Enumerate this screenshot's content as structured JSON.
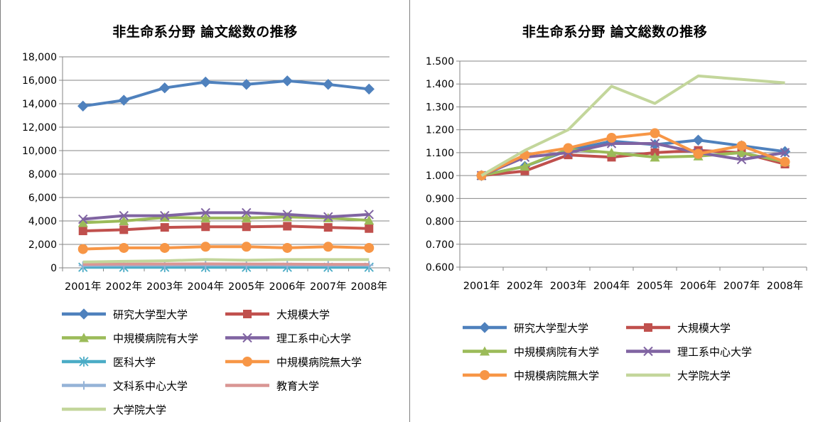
{
  "chart_data": [
    {
      "type": "line",
      "title": "非生命系分野 論文総数の推移",
      "categories": [
        "2001年",
        "2002年",
        "2003年",
        "2004年",
        "2005年",
        "2006年",
        "2007年",
        "2008年"
      ],
      "ylim": [
        0,
        18000
      ],
      "yticks": [
        "0",
        "2,000",
        "4,000",
        "6,000",
        "8,000",
        "10,000",
        "12,000",
        "14,000",
        "16,000",
        "18,000"
      ],
      "grid": true,
      "legend_position": "bottom",
      "series": [
        {
          "name": "研究大学型大学",
          "color": "#4f81bd",
          "marker": "diamond",
          "values": [
            13800,
            14300,
            15350,
            15850,
            15650,
            15950,
            15650,
            15250
          ]
        },
        {
          "name": "大規模大学",
          "color": "#c0504d",
          "marker": "square",
          "values": [
            3150,
            3250,
            3450,
            3500,
            3500,
            3550,
            3450,
            3350
          ]
        },
        {
          "name": "中規模病院有大学",
          "color": "#9bbb59",
          "marker": "triangle",
          "values": [
            3850,
            4000,
            4300,
            4250,
            4250,
            4350,
            4250,
            4050
          ]
        },
        {
          "name": "理工系中心大学",
          "color": "#8064a2",
          "marker": "x",
          "values": [
            4150,
            4450,
            4450,
            4700,
            4700,
            4550,
            4350,
            4550
          ]
        },
        {
          "name": "医科大学",
          "color": "#4bacc6",
          "marker": "star",
          "values": [
            50,
            50,
            50,
            50,
            50,
            50,
            50,
            50
          ]
        },
        {
          "name": "中規模病院無大学",
          "color": "#f79646",
          "marker": "circle",
          "values": [
            1600,
            1700,
            1700,
            1800,
            1800,
            1700,
            1800,
            1700
          ]
        },
        {
          "name": "文科系中心大学",
          "color": "#95b3d7",
          "marker": "plus",
          "values": [
            200,
            220,
            230,
            240,
            240,
            230,
            220,
            220
          ]
        },
        {
          "name": "教育大学",
          "color": "#d99694",
          "marker": "none",
          "values": [
            300,
            320,
            330,
            340,
            330,
            320,
            300,
            300
          ]
        },
        {
          "name": "大学院大学",
          "color": "#c3d69b",
          "marker": "none",
          "values": [
            500,
            550,
            600,
            700,
            650,
            700,
            700,
            700
          ]
        }
      ]
    },
    {
      "type": "line",
      "title": "非生命系分野 論文総数の推移",
      "categories": [
        "2001年",
        "2002年",
        "2003年",
        "2004年",
        "2005年",
        "2006年",
        "2007年",
        "2008年"
      ],
      "ylim": [
        0.6,
        1.5
      ],
      "yticks": [
        "0.600",
        "0.700",
        "0.800",
        "0.900",
        "1.000",
        "1.100",
        "1.200",
        "1.300",
        "1.400",
        "1.500"
      ],
      "grid": true,
      "legend_position": "bottom",
      "series": [
        {
          "name": "研究大学型大学",
          "color": "#4f81bd",
          "marker": "diamond",
          "values": [
            1.0,
            1.04,
            1.11,
            1.15,
            1.135,
            1.155,
            1.13,
            1.105
          ]
        },
        {
          "name": "大規模大学",
          "color": "#c0504d",
          "marker": "square",
          "values": [
            1.0,
            1.02,
            1.09,
            1.08,
            1.1,
            1.11,
            1.1,
            1.05
          ]
        },
        {
          "name": "中規模病院有大学",
          "color": "#9bbb59",
          "marker": "triangle",
          "values": [
            1.0,
            1.04,
            1.115,
            1.1,
            1.08,
            1.085,
            1.1,
            1.06
          ]
        },
        {
          "name": "理工系中心大学",
          "color": "#8064a2",
          "marker": "x",
          "values": [
            1.0,
            1.08,
            1.1,
            1.14,
            1.14,
            1.1,
            1.07,
            1.1
          ]
        },
        {
          "name": "中規模病院無大学",
          "color": "#f79646",
          "marker": "circle",
          "values": [
            1.0,
            1.09,
            1.12,
            1.165,
            1.185,
            1.095,
            1.13,
            1.06
          ]
        },
        {
          "name": "大学院大学",
          "color": "#c3d69b",
          "marker": "none",
          "values": [
            1.0,
            1.11,
            1.2,
            1.39,
            1.315,
            1.435,
            1.42,
            1.405
          ]
        }
      ]
    }
  ]
}
